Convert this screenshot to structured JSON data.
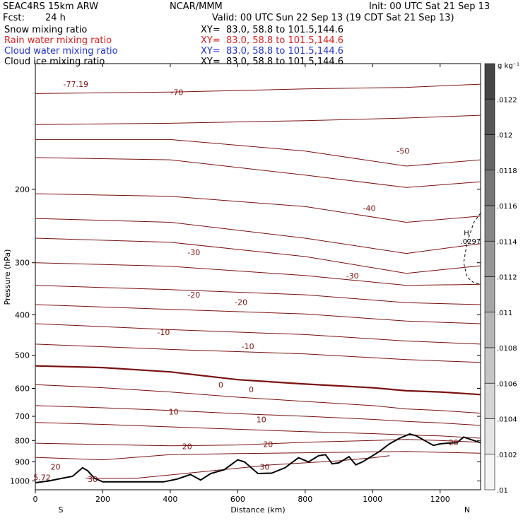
{
  "header": {
    "model": "SEAC4RS 15km ARW",
    "center": "NCAR/MMM",
    "init": "Init: 00 UTC Sat 21 Sep 13",
    "fcst_label": "Fcst:",
    "fcst_value": "24 h",
    "valid": "Valid: 00 UTC Sun 22 Sep 13 (19 CDT Sat 21 Sep 13)",
    "fields": [
      {
        "name": "Snow mixing ratio",
        "xy": "XY=  83.0, 58.8 to 101.5,144.6",
        "color": "#000000"
      },
      {
        "name": "Rain water mixing ratio",
        "xy": "XY=  83.0, 58.8 to 101.5,144.6",
        "color": "#e02020"
      },
      {
        "name": "Cloud water mixing ratio",
        "xy": "XY=  83.0, 58.8 to 101.5,144.6",
        "color": "#2030d0"
      },
      {
        "name": "Cloud ice mixing ratio",
        "xy": "XY=  83.0, 58.8 to 101.5,144.6",
        "color": "#000000"
      }
    ]
  },
  "chart_data": {
    "type": "line",
    "xlabel": "Distance (km)",
    "ylabel": "Pressure (hPa)",
    "xlim": [
      0,
      1320
    ],
    "ylim": [
      1050,
      100
    ],
    "y_scale": "log",
    "x_ticks": [
      "0",
      "200",
      "400",
      "600",
      "800",
      "1000",
      "1200"
    ],
    "y_ticks": [
      "200",
      "300",
      "400",
      "500",
      "600",
      "700",
      "800",
      "900",
      "1000"
    ],
    "x_end_labels": {
      "left": "S",
      "right": "N"
    },
    "contour_color": "#7a1010",
    "terrain_color": "#000000",
    "isotherms": [
      {
        "label": "-70",
        "x": [
          0,
          400,
          800,
          1100,
          1320
        ],
        "p": [
          118,
          117,
          115,
          114,
          112
        ]
      },
      {
        "label": "",
        "x": [
          0,
          400,
          800,
          1100,
          1320
        ],
        "p": [
          140,
          139,
          137,
          135,
          133
        ]
      },
      {
        "label": "-50",
        "x": [
          0,
          400,
          800,
          1100,
          1320
        ],
        "p": [
          152,
          152,
          162,
          176,
          170
        ]
      },
      {
        "label": "",
        "x": [
          0,
          400,
          800,
          1100,
          1320
        ],
        "p": [
          168,
          170,
          185,
          198,
          192
        ]
      },
      {
        "label": "-40",
        "x": [
          0,
          400,
          800,
          1100,
          1320
        ],
        "p": [
          205,
          208,
          220,
          240,
          232
        ]
      },
      {
        "label": "",
        "x": [
          0,
          400,
          800,
          1100,
          1320
        ],
        "p": [
          235,
          240,
          262,
          285,
          270
        ]
      },
      {
        "label": "-30",
        "x": [
          0,
          400,
          800,
          1100,
          1320
        ],
        "p": [
          262,
          268,
          290,
          318,
          305
        ]
      },
      {
        "label": "",
        "x": [
          0,
          400,
          800,
          1100,
          1320
        ],
        "p": [
          300,
          306,
          322,
          340,
          338
        ]
      },
      {
        "label": "-20",
        "x": [
          0,
          400,
          800,
          1100,
          1320
        ],
        "p": [
          340,
          348,
          358,
          374,
          378
        ]
      },
      {
        "label": "",
        "x": [
          0,
          400,
          800,
          1100,
          1320
        ],
        "p": [
          378,
          388,
          398,
          414,
          420
        ]
      },
      {
        "label": "-10",
        "x": [
          0,
          400,
          800,
          1100,
          1320
        ],
        "p": [
          420,
          434,
          446,
          462,
          470
        ]
      },
      {
        "label": "",
        "x": [
          0,
          400,
          800,
          1100,
          1320
        ],
        "p": [
          470,
          484,
          496,
          512,
          520
        ]
      },
      {
        "label": "0",
        "x": [
          0,
          200,
          400,
          600,
          800,
          1000,
          1100,
          1200,
          1320
        ],
        "p": [
          530,
          535,
          548,
          572,
          586,
          598,
          608,
          612,
          621
        ],
        "bold": true
      },
      {
        "label": "",
        "x": [
          0,
          200,
          400,
          600,
          800,
          1000,
          1100,
          1200,
          1320
        ],
        "p": [
          588,
          598,
          612,
          630,
          645,
          660,
          672,
          678,
          688
        ]
      },
      {
        "label": "10",
        "x": [
          0,
          200,
          400,
          600,
          800,
          1000,
          1100,
          1200,
          1320
        ],
        "p": [
          660,
          668,
          678,
          690,
          700,
          712,
          720,
          726,
          736
        ]
      },
      {
        "label": "",
        "x": [
          0,
          200,
          400,
          600,
          800,
          1000,
          1100,
          1200,
          1320
        ],
        "p": [
          724,
          732,
          742,
          752,
          762,
          770,
          776,
          780,
          790
        ]
      },
      {
        "label": "20",
        "x": [
          0,
          200,
          400,
          600,
          800,
          1000,
          1100,
          1200,
          1320
        ],
        "p": [
          812,
          818,
          824,
          820,
          808,
          800,
          795,
          800,
          808
        ]
      },
      {
        "label": "",
        "x": [
          0,
          200,
          400,
          600,
          800,
          1000,
          1100,
          1200,
          1320
        ],
        "p": [
          878,
          890,
          865,
          860,
          856,
          852,
          850,
          854,
          858
        ]
      },
      {
        "label": "30",
        "x": [
          150,
          300,
          500,
          700,
          900,
          1000,
          1050
        ],
        "p": [
          985,
          985,
          950,
          915,
          895,
          880,
          870
        ]
      }
    ],
    "isotherm_labels": [
      {
        "label": "-70",
        "x": 420,
        "p": 117
      },
      {
        "label": "-50",
        "x": 1090,
        "p": 162
      },
      {
        "label": "-40",
        "x": 990,
        "p": 222
      },
      {
        "label": "-30",
        "x": 470,
        "p": 283
      },
      {
        "label": "-30",
        "x": 940,
        "p": 322
      },
      {
        "label": "-20",
        "x": 470,
        "p": 358
      },
      {
        "label": "-20",
        "x": 610,
        "p": 373
      },
      {
        "label": "-10",
        "x": 380,
        "p": 440
      },
      {
        "label": "-10",
        "x": 630,
        "p": 476
      },
      {
        "label": "0",
        "x": 550,
        "p": 588
      },
      {
        "label": "0",
        "x": 640,
        "p": 603
      },
      {
        "label": "10",
        "x": 410,
        "p": 682
      },
      {
        "label": "10",
        "x": 670,
        "p": 712
      },
      {
        "label": "20",
        "x": 450,
        "p": 826
      },
      {
        "label": "20",
        "x": 690,
        "p": 816
      },
      {
        "label": "20",
        "x": 1240,
        "p": 808
      },
      {
        "label": "20",
        "x": 60,
        "p": 925
      },
      {
        "label": "30",
        "x": 680,
        "p": 925
      },
      {
        "label": "30",
        "x": 170,
        "p": 990
      }
    ],
    "terrain": {
      "x": [
        0,
        40,
        80,
        110,
        140,
        155,
        175,
        200,
        380,
        420,
        460,
        490,
        520,
        560,
        600,
        620,
        660,
        700,
        740,
        780,
        810,
        840,
        860,
        880,
        900,
        930,
        950,
        970,
        990,
        1020,
        1050,
        1080,
        1110,
        1130,
        1160,
        1180,
        1200,
        1220,
        1250,
        1270,
        1290,
        1320
      ],
      "p": [
        1010,
        1000,
        985,
        975,
        930,
        945,
        985,
        1005,
        1005,
        990,
        965,
        995,
        960,
        940,
        890,
        900,
        960,
        958,
        930,
        880,
        900,
        870,
        865,
        910,
        905,
        875,
        915,
        900,
        880,
        850,
        815,
        790,
        772,
        780,
        805,
        822,
        815,
        812,
        810,
        785,
        795,
        810
      ]
    },
    "cloud_ice_contour": {
      "label": "H",
      "value": ".0297",
      "x": [
        1320,
        1300,
        1280,
        1270,
        1280,
        1300,
        1320
      ],
      "p": [
        228,
        240,
        268,
        300,
        325,
        335,
        338
      ]
    },
    "extra_labels": [
      {
        "label": "-77.19",
        "x": 120,
        "p": 112
      },
      {
        "label": "5.72",
        "x": 20,
        "p": 980
      }
    ],
    "colorbar": {
      "unit": "g kg⁻¹",
      "ticks": [
        ".0122",
        ".012",
        ".0118",
        ".0116",
        ".0114",
        ".0112",
        ".011",
        ".0108",
        ".0106",
        ".0104",
        ".0102",
        ".01"
      ],
      "range": [
        0.01,
        0.0124
      ]
    }
  }
}
